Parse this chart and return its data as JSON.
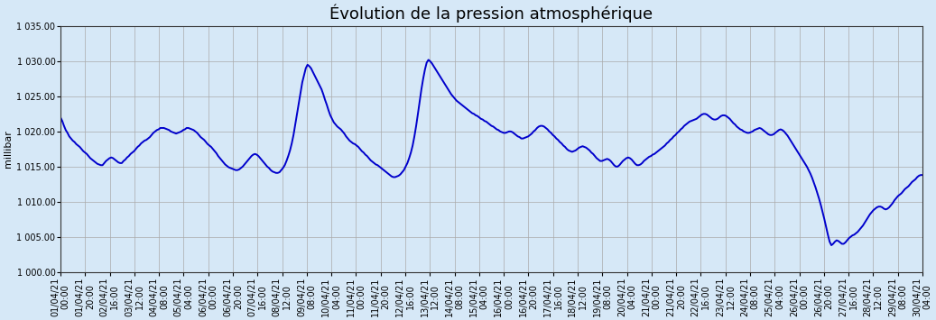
{
  "title": "Évolution de la pression atmosphérique",
  "ylabel": "millibar",
  "background_color": "#d6e8f7",
  "plot_bg_color": "#d6e8f7",
  "line_color": "#0000cc",
  "line_width": 1.4,
  "ylim": [
    1000.0,
    1035.0
  ],
  "yticks": [
    1000.0,
    1005.0,
    1010.0,
    1015.0,
    1020.0,
    1025.0,
    1030.0,
    1035.0
  ],
  "title_fontsize": 13,
  "label_fontsize": 7,
  "ylabel_fontsize": 8,
  "grid_color": "#aaaaaa",
  "tick_interval_hours": 20,
  "start_dt": "2021-04-01T00:00:00",
  "end_dt": "2021-04-30T04:00:00",
  "pressure_data": [
    1022.0,
    1021.5,
    1020.8,
    1020.2,
    1019.8,
    1019.3,
    1019.0,
    1018.7,
    1018.5,
    1018.2,
    1018.0,
    1017.8,
    1017.5,
    1017.2,
    1017.0,
    1016.8,
    1016.5,
    1016.2,
    1016.0,
    1015.8,
    1015.6,
    1015.4,
    1015.3,
    1015.2,
    1015.2,
    1015.5,
    1015.8,
    1016.0,
    1016.2,
    1016.3,
    1016.2,
    1016.0,
    1015.8,
    1015.6,
    1015.5,
    1015.5,
    1015.8,
    1016.0,
    1016.3,
    1016.5,
    1016.8,
    1017.0,
    1017.2,
    1017.5,
    1017.8,
    1018.0,
    1018.3,
    1018.5,
    1018.7,
    1018.8,
    1019.0,
    1019.2,
    1019.5,
    1019.8,
    1020.0,
    1020.2,
    1020.3,
    1020.5,
    1020.5,
    1020.5,
    1020.4,
    1020.3,
    1020.2,
    1020.0,
    1019.9,
    1019.8,
    1019.7,
    1019.8,
    1019.9,
    1020.0,
    1020.2,
    1020.3,
    1020.5,
    1020.5,
    1020.4,
    1020.3,
    1020.2,
    1020.0,
    1019.8,
    1019.5,
    1019.2,
    1019.0,
    1018.8,
    1018.5,
    1018.2,
    1018.0,
    1017.8,
    1017.5,
    1017.2,
    1016.9,
    1016.5,
    1016.2,
    1015.9,
    1015.6,
    1015.3,
    1015.1,
    1014.9,
    1014.8,
    1014.7,
    1014.6,
    1014.5,
    1014.5,
    1014.6,
    1014.8,
    1015.0,
    1015.3,
    1015.6,
    1015.9,
    1016.2,
    1016.5,
    1016.7,
    1016.8,
    1016.7,
    1016.5,
    1016.2,
    1015.9,
    1015.6,
    1015.3,
    1015.0,
    1014.8,
    1014.5,
    1014.3,
    1014.2,
    1014.1,
    1014.1,
    1014.2,
    1014.5,
    1014.8,
    1015.2,
    1015.8,
    1016.5,
    1017.3,
    1018.3,
    1019.5,
    1021.0,
    1022.5,
    1024.0,
    1025.5,
    1027.0,
    1028.0,
    1029.0,
    1029.5,
    1029.3,
    1029.0,
    1028.5,
    1028.0,
    1027.5,
    1027.0,
    1026.5,
    1026.0,
    1025.3,
    1024.5,
    1023.8,
    1023.0,
    1022.3,
    1021.8,
    1021.3,
    1021.0,
    1020.7,
    1020.5,
    1020.3,
    1020.0,
    1019.7,
    1019.3,
    1019.0,
    1018.7,
    1018.5,
    1018.3,
    1018.2,
    1018.0,
    1017.8,
    1017.5,
    1017.2,
    1017.0,
    1016.7,
    1016.5,
    1016.2,
    1015.9,
    1015.7,
    1015.5,
    1015.3,
    1015.2,
    1015.0,
    1014.8,
    1014.6,
    1014.4,
    1014.2,
    1014.0,
    1013.8,
    1013.6,
    1013.5,
    1013.5,
    1013.6,
    1013.7,
    1013.9,
    1014.2,
    1014.5,
    1015.0,
    1015.5,
    1016.2,
    1017.0,
    1018.0,
    1019.3,
    1020.8,
    1022.5,
    1024.3,
    1026.0,
    1027.5,
    1028.8,
    1029.8,
    1030.2,
    1030.0,
    1029.7,
    1029.3,
    1028.9,
    1028.5,
    1028.1,
    1027.7,
    1027.3,
    1026.9,
    1026.5,
    1026.1,
    1025.7,
    1025.3,
    1025.0,
    1024.7,
    1024.4,
    1024.2,
    1024.0,
    1023.8,
    1023.6,
    1023.4,
    1023.2,
    1023.0,
    1022.8,
    1022.6,
    1022.5,
    1022.3,
    1022.2,
    1022.0,
    1021.8,
    1021.7,
    1021.5,
    1021.4,
    1021.2,
    1021.0,
    1020.8,
    1020.7,
    1020.5,
    1020.3,
    1020.2,
    1020.0,
    1019.9,
    1019.8,
    1019.8,
    1019.9,
    1020.0,
    1020.0,
    1019.9,
    1019.7,
    1019.5,
    1019.3,
    1019.2,
    1019.0,
    1019.0,
    1019.1,
    1019.2,
    1019.3,
    1019.5,
    1019.7,
    1020.0,
    1020.2,
    1020.5,
    1020.7,
    1020.8,
    1020.8,
    1020.7,
    1020.5,
    1020.3,
    1020.0,
    1019.8,
    1019.5,
    1019.3,
    1019.0,
    1018.8,
    1018.5,
    1018.3,
    1018.0,
    1017.8,
    1017.5,
    1017.3,
    1017.2,
    1017.1,
    1017.2,
    1017.3,
    1017.5,
    1017.7,
    1017.8,
    1017.9,
    1017.8,
    1017.7,
    1017.5,
    1017.3,
    1017.0,
    1016.8,
    1016.5,
    1016.2,
    1016.0,
    1015.8,
    1015.8,
    1015.9,
    1016.0,
    1016.1,
    1016.0,
    1015.8,
    1015.5,
    1015.2,
    1015.0,
    1015.0,
    1015.2,
    1015.5,
    1015.8,
    1016.0,
    1016.2,
    1016.3,
    1016.2,
    1016.0,
    1015.7,
    1015.4,
    1015.2,
    1015.2,
    1015.3,
    1015.5,
    1015.8,
    1016.0,
    1016.2,
    1016.4,
    1016.5,
    1016.7,
    1016.8,
    1017.0,
    1017.2,
    1017.4,
    1017.6,
    1017.8,
    1018.0,
    1018.3,
    1018.5,
    1018.8,
    1019.0,
    1019.3,
    1019.5,
    1019.8,
    1020.0,
    1020.3,
    1020.5,
    1020.8,
    1021.0,
    1021.2,
    1021.4,
    1021.5,
    1021.6,
    1021.7,
    1021.8,
    1022.0,
    1022.2,
    1022.4,
    1022.5,
    1022.5,
    1022.4,
    1022.2,
    1022.0,
    1021.8,
    1021.7,
    1021.7,
    1021.8,
    1022.0,
    1022.2,
    1022.3,
    1022.3,
    1022.2,
    1022.0,
    1021.8,
    1021.5,
    1021.2,
    1021.0,
    1020.7,
    1020.5,
    1020.3,
    1020.2,
    1020.0,
    1019.9,
    1019.8,
    1019.8,
    1019.9,
    1020.0,
    1020.2,
    1020.3,
    1020.4,
    1020.5,
    1020.4,
    1020.2,
    1020.0,
    1019.8,
    1019.6,
    1019.5,
    1019.5,
    1019.6,
    1019.8,
    1020.0,
    1020.2,
    1020.3,
    1020.2,
    1020.0,
    1019.7,
    1019.4,
    1019.0,
    1018.6,
    1018.2,
    1017.8,
    1017.4,
    1017.0,
    1016.6,
    1016.2,
    1015.8,
    1015.4,
    1015.0,
    1014.5,
    1014.0,
    1013.4,
    1012.7,
    1012.0,
    1011.2,
    1010.4,
    1009.5,
    1008.5,
    1007.5,
    1006.4,
    1005.3,
    1004.3,
    1003.8,
    1004.0,
    1004.3,
    1004.5,
    1004.4,
    1004.2,
    1004.0,
    1004.0,
    1004.2,
    1004.5,
    1004.8,
    1005.0,
    1005.2,
    1005.3,
    1005.5,
    1005.7,
    1006.0,
    1006.3,
    1006.6,
    1007.0,
    1007.4,
    1007.8,
    1008.2,
    1008.5,
    1008.8,
    1009.0,
    1009.2,
    1009.3,
    1009.3,
    1009.2,
    1009.0,
    1008.9,
    1009.0,
    1009.2,
    1009.5,
    1009.8,
    1010.2,
    1010.5,
    1010.8,
    1011.0,
    1011.2,
    1011.5,
    1011.8,
    1012.0,
    1012.2,
    1012.5,
    1012.8,
    1013.0,
    1013.2,
    1013.5,
    1013.7,
    1013.8,
    1013.8
  ]
}
